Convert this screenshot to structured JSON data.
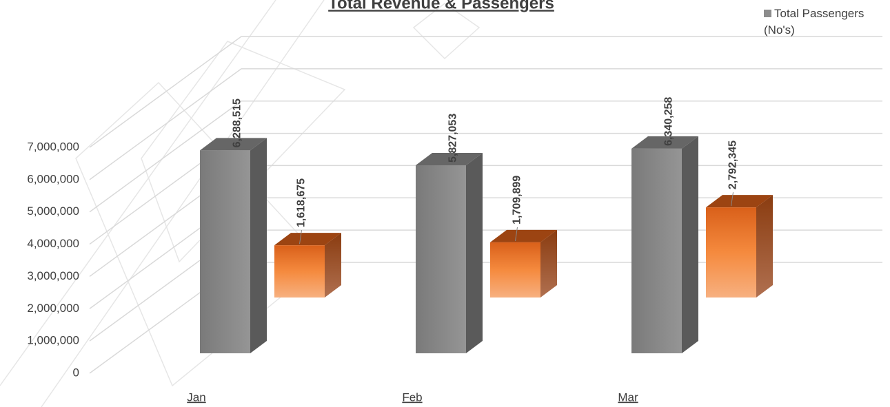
{
  "chart_data": {
    "type": "bar3d",
    "title": "Total Revenue & Passengers",
    "categories": [
      "Jan",
      "Feb",
      "Mar"
    ],
    "series": [
      {
        "name": "Total Passengers (No's)",
        "color": "#8c8c8c",
        "values": [
          6288515,
          5827053,
          6340258
        ],
        "value_labels": [
          "6,288,515",
          "5,827,053",
          "6,340,258"
        ]
      },
      {
        "color": "#f08a3c",
        "values": [
          1618675,
          1709899,
          2792345
        ],
        "value_labels": [
          "1,618,675",
          "1,709,899",
          "2,792,345"
        ]
      }
    ],
    "ylim": [
      0,
      7000000
    ],
    "yticks": [
      {
        "value": 0,
        "label": "0"
      },
      {
        "value": 1000000,
        "label": "1,000,000"
      },
      {
        "value": 2000000,
        "label": "2,000,000"
      },
      {
        "value": 3000000,
        "label": "3,000,000"
      },
      {
        "value": 4000000,
        "label": "4,000,000"
      },
      {
        "value": 5000000,
        "label": "5,000,000"
      },
      {
        "value": 6000000,
        "label": "6,000,000"
      },
      {
        "value": 7000000,
        "label": "7,000,000"
      }
    ],
    "grid": true,
    "legend": "top-right"
  }
}
